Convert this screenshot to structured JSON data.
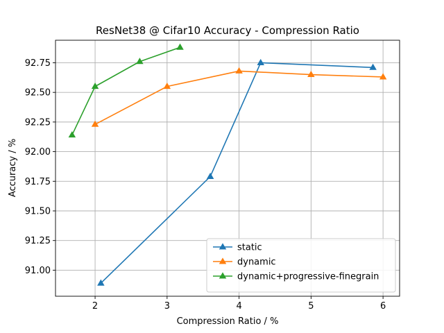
{
  "chart_data": {
    "type": "line",
    "title": "ResNet38 @ Cifar10 Accuracy - Compression Ratio",
    "xlabel": "Compression Ratio / %",
    "ylabel": "Accuracy / %",
    "xlim": [
      1.45,
      6.23
    ],
    "ylim": [
      90.78,
      92.94
    ],
    "xticks": [
      2,
      3,
      4,
      5,
      6
    ],
    "xtick_labels": [
      "2",
      "3",
      "4",
      "5",
      "6"
    ],
    "yticks": [
      91.0,
      91.25,
      91.5,
      91.75,
      92.0,
      92.25,
      92.5,
      92.75
    ],
    "ytick_labels": [
      "91.00",
      "91.25",
      "91.50",
      "91.75",
      "92.00",
      "92.25",
      "92.50",
      "92.75"
    ],
    "grid": true,
    "legend_position": "lower-right",
    "marker": "triangle-up",
    "series": [
      {
        "name": "static",
        "color": "#1f77b4",
        "x": [
          2.08,
          3.6,
          4.3,
          5.86
        ],
        "y": [
          90.89,
          91.79,
          92.75,
          92.71
        ]
      },
      {
        "name": "dynamic",
        "color": "#ff7f0e",
        "x": [
          2.0,
          3.0,
          4.0,
          5.0,
          6.0
        ],
        "y": [
          92.23,
          92.55,
          92.68,
          92.65,
          92.63
        ]
      },
      {
        "name": "dynamic+progressive-finegrain",
        "color": "#2ca02c",
        "x": [
          1.68,
          2.0,
          2.62,
          3.18
        ],
        "y": [
          92.14,
          92.55,
          92.76,
          92.88
        ]
      }
    ]
  }
}
